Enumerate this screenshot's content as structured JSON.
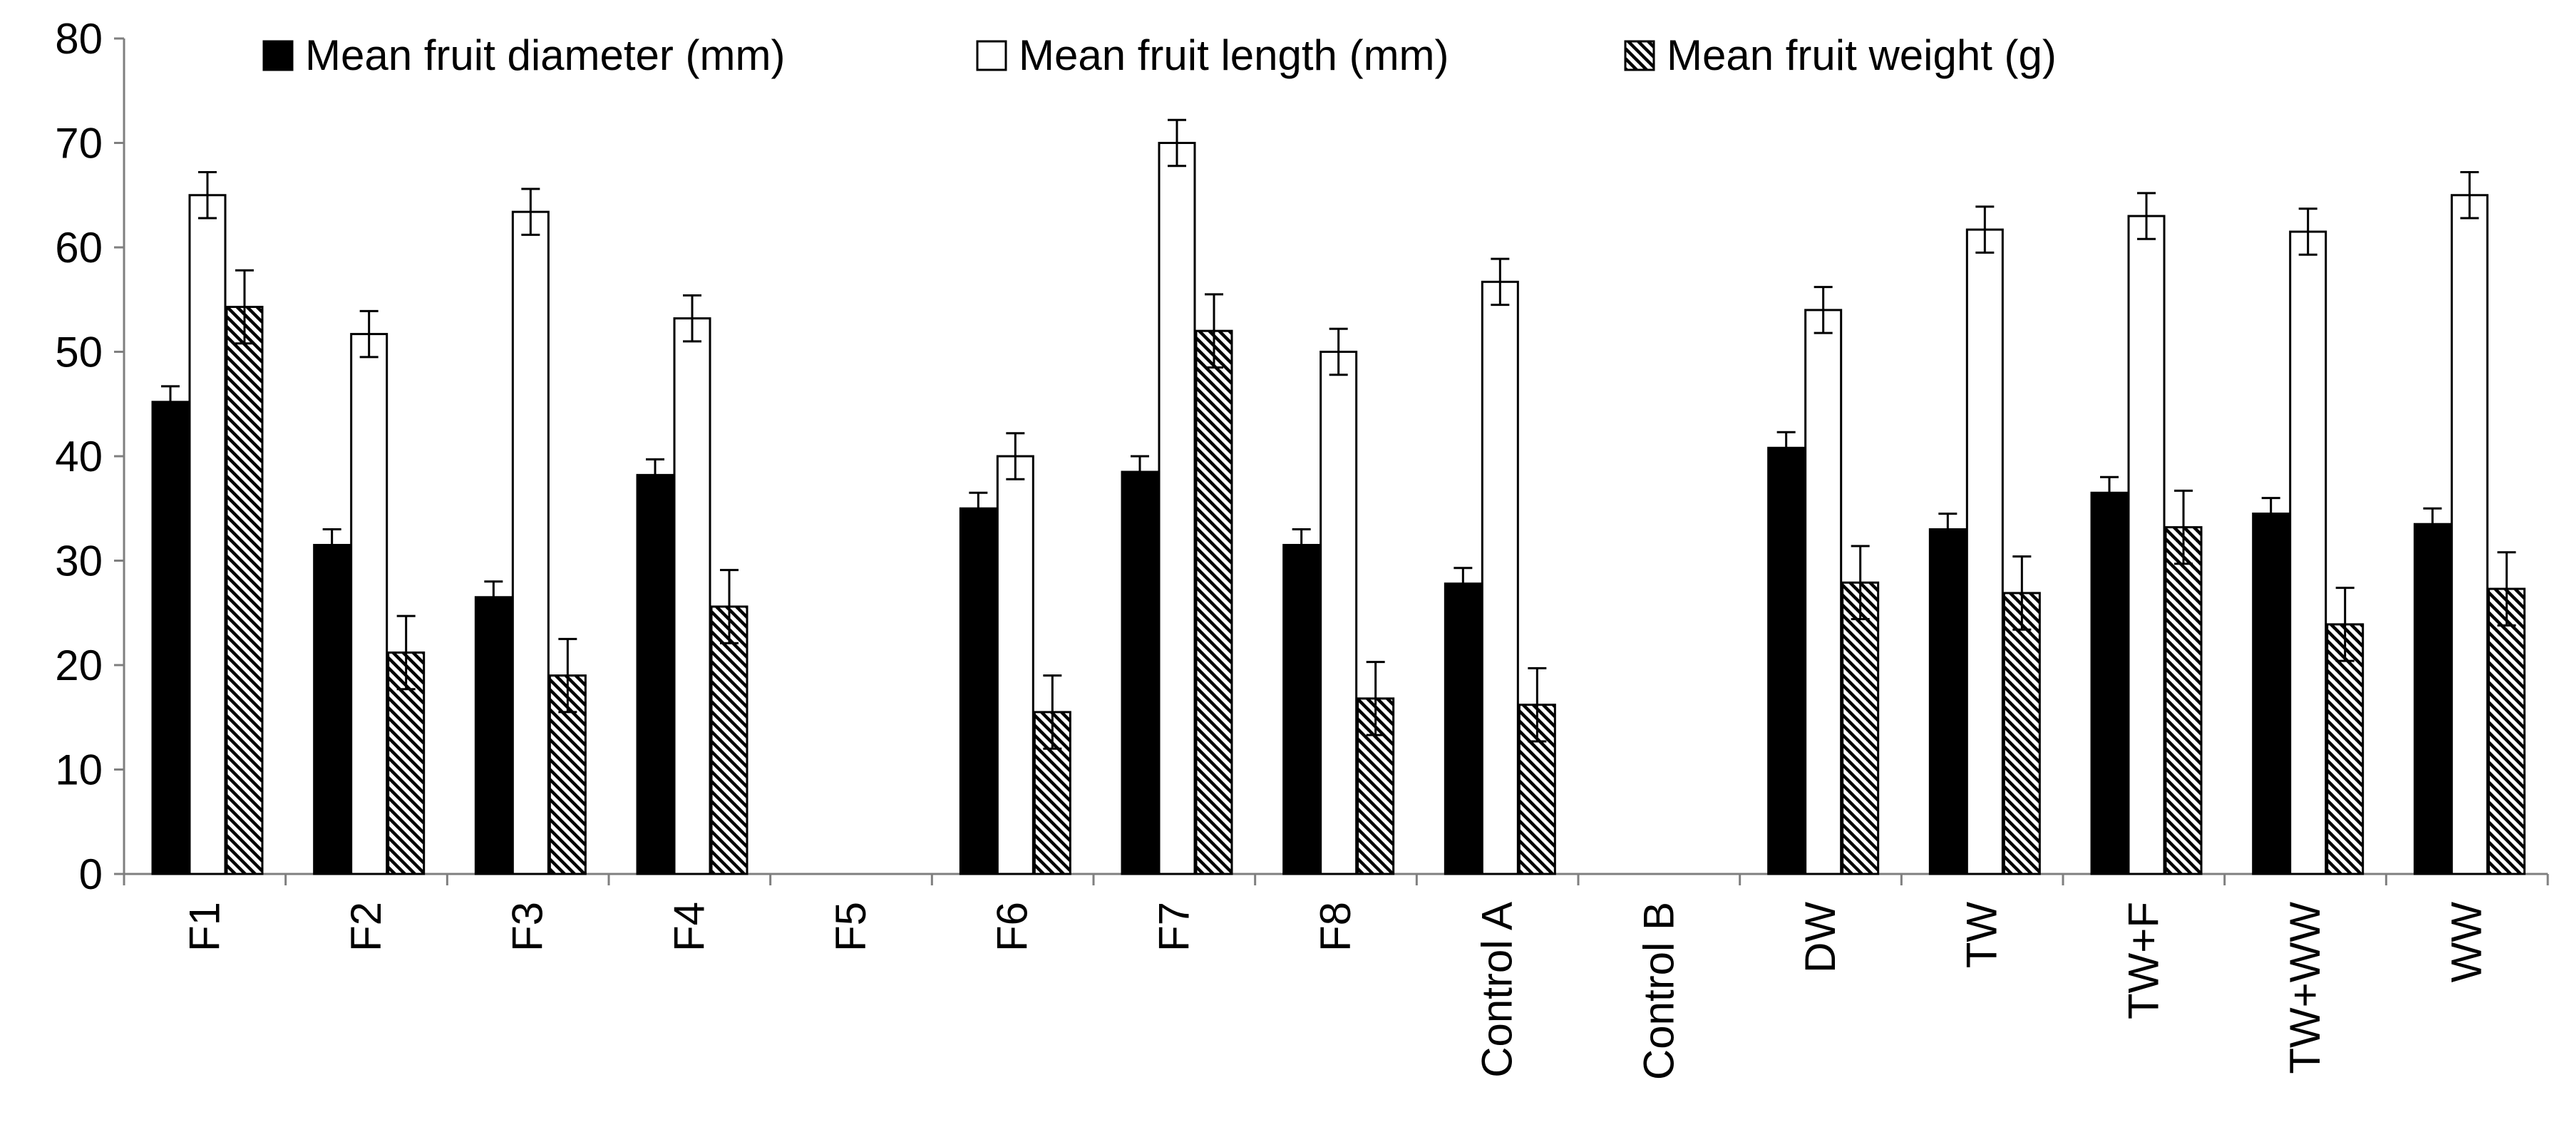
{
  "chart_data": {
    "type": "bar",
    "title": "",
    "xlabel": "",
    "ylabel": "",
    "ylim": [
      0,
      80
    ],
    "yticks": [
      0,
      10,
      20,
      30,
      40,
      50,
      60,
      70,
      80
    ],
    "categories": [
      "F1",
      "F2",
      "F3",
      "F4",
      "F5",
      "F6",
      "F7",
      "F8",
      "Control A",
      "Control B",
      "DW",
      "TW",
      "TW+F",
      "TW+WW",
      "WW"
    ],
    "series": [
      {
        "name": "Mean fruit diameter (mm)",
        "fill": "solid",
        "values": [
          45.2,
          31.5,
          26.5,
          38.2,
          null,
          35.0,
          38.5,
          31.5,
          27.8,
          null,
          40.8,
          33.0,
          36.5,
          34.5,
          33.5
        ],
        "errors": [
          1.5,
          1.5,
          1.5,
          1.5,
          null,
          1.5,
          1.5,
          1.5,
          1.5,
          null,
          1.5,
          1.5,
          1.5,
          1.5,
          1.5
        ]
      },
      {
        "name": "Mean fruit length (mm)",
        "fill": "open",
        "values": [
          65.0,
          51.7,
          63.4,
          53.2,
          null,
          40.0,
          70.0,
          50.0,
          56.7,
          null,
          54.0,
          61.7,
          63.0,
          61.5,
          65.0
        ],
        "errors": [
          2.2,
          2.2,
          2.2,
          2.2,
          null,
          2.2,
          2.2,
          2.2,
          2.2,
          null,
          2.2,
          2.2,
          2.2,
          2.2,
          2.2
        ]
      },
      {
        "name": "Mean fruit weight (g)",
        "fill": "hatched",
        "values": [
          54.3,
          21.2,
          19.0,
          25.6,
          null,
          15.5,
          52.0,
          16.8,
          16.2,
          null,
          27.9,
          26.9,
          33.2,
          23.9,
          27.3
        ],
        "errors": [
          3.5,
          3.5,
          3.5,
          3.5,
          null,
          3.5,
          3.5,
          3.5,
          3.5,
          null,
          3.5,
          3.5,
          3.5,
          3.5,
          3.5
        ]
      }
    ],
    "legend_position": "top",
    "grid": false
  }
}
